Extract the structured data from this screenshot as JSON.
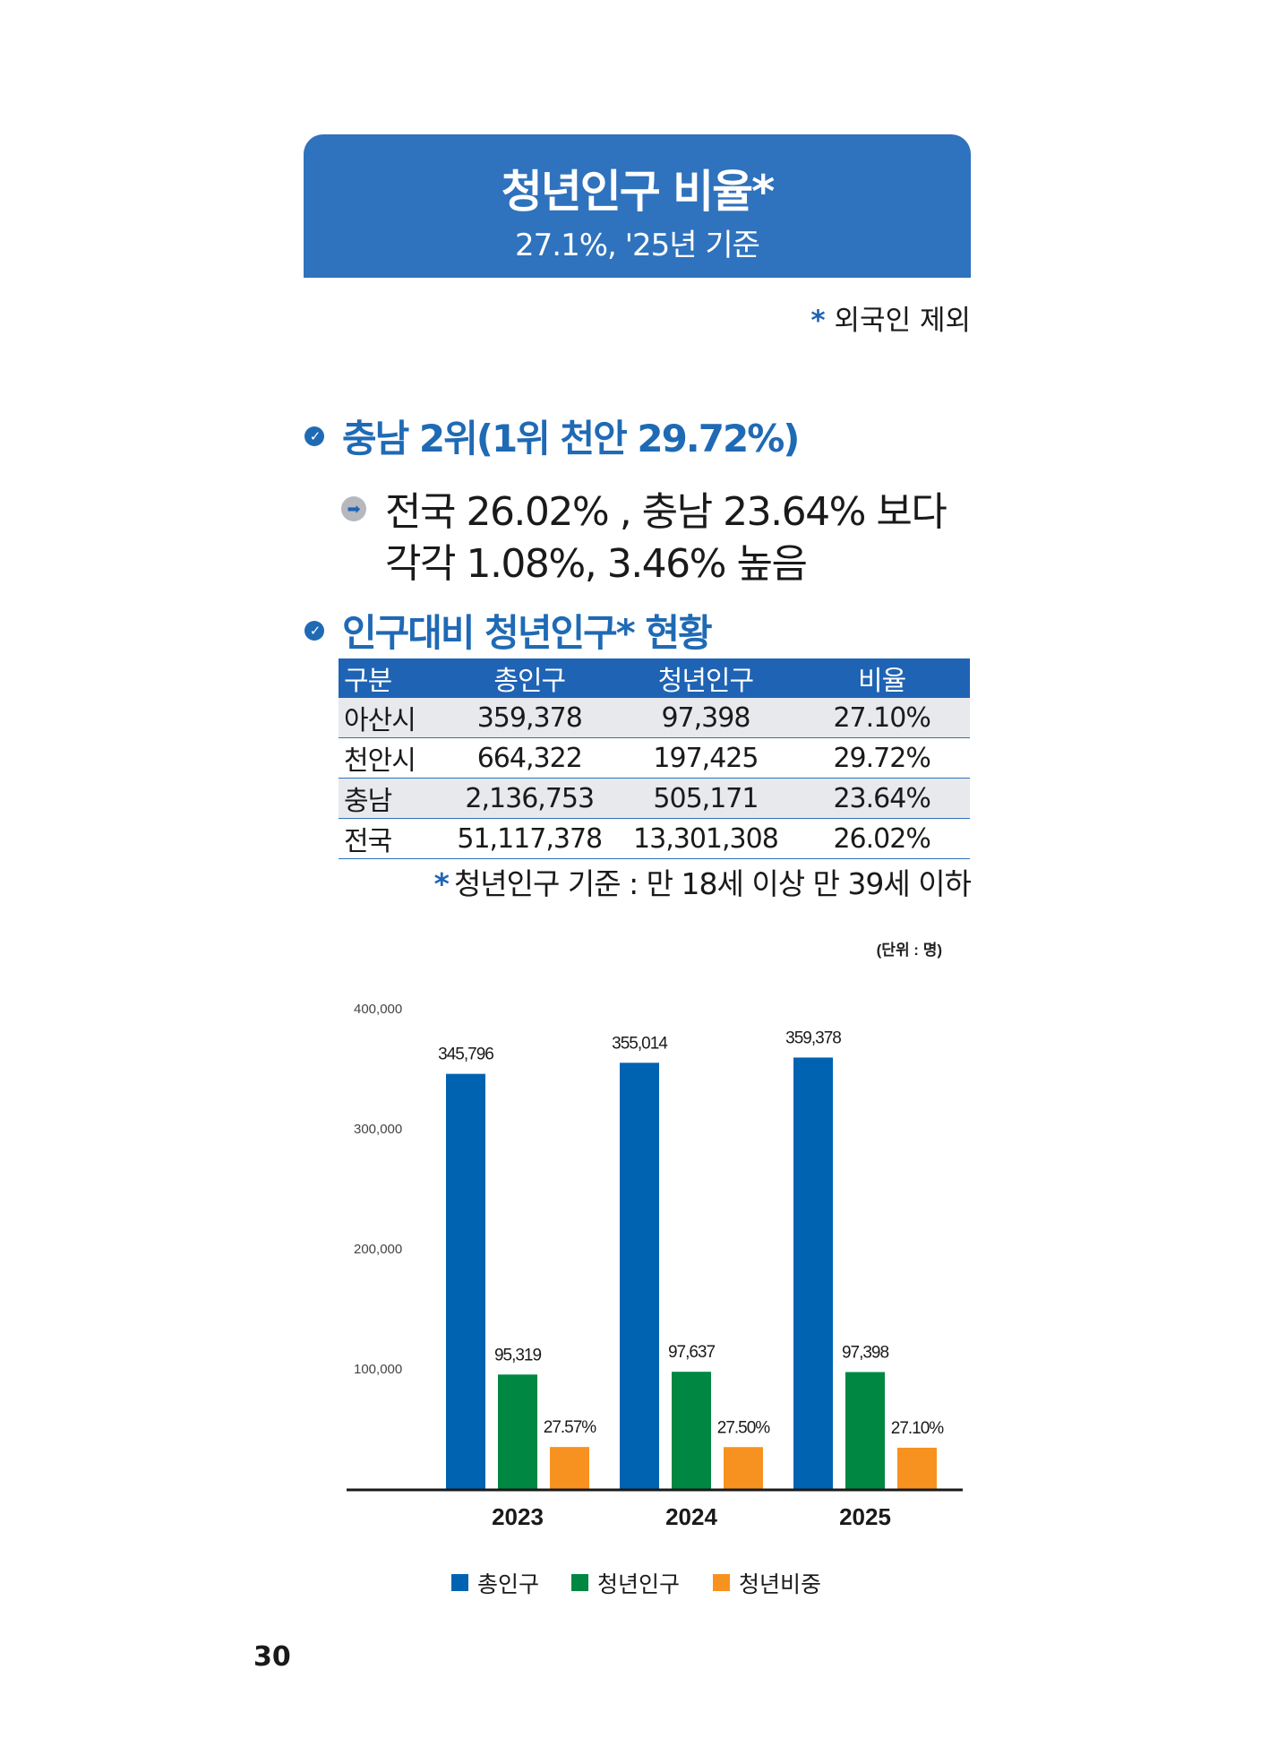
{
  "banner": {
    "title": "청년인구 비율*",
    "subtitle": "27.1%, '25년 기준"
  },
  "foreign_note": {
    "mark": "*",
    "text": "외국인 제외"
  },
  "section1": {
    "heading": "충남 2위(1위 천안 29.72%)",
    "line1": "전국 26.02% , 충남 23.64% 보다",
    "line2": "각각 1.08%, 3.46% 높음"
  },
  "section2": {
    "heading": "인구대비 청년인구* 현황"
  },
  "table": {
    "headers": [
      "구분",
      "총인구",
      "청년인구",
      "비율"
    ],
    "rows": [
      [
        "아산시",
        "359,378",
        "97,398",
        "27.10%"
      ],
      [
        "천안시",
        "664,322",
        "197,425",
        "29.72%"
      ],
      [
        "충남",
        "2,136,753",
        "505,171",
        "23.64%"
      ],
      [
        "전국",
        "51,117,378",
        "13,301,308",
        "26.02%"
      ]
    ],
    "note_mark": "*",
    "note": "청년인구 기준 : 만 18세 이상 만 39세 이하"
  },
  "chart_data": {
    "type": "bar",
    "unit_label": "(단위 : 명)",
    "categories": [
      "2023",
      "2024",
      "2025"
    ],
    "yticks": [
      "100,000",
      "200,000",
      "300,000",
      "400,000"
    ],
    "ylim": [
      0,
      400000
    ],
    "grid": false,
    "legend_position": "bottom",
    "series": [
      {
        "name": "총인구",
        "color": "#0063b2",
        "values": [
          345796,
          355014,
          359378
        ],
        "labels": [
          "345,796",
          "355,014",
          "359,378"
        ]
      },
      {
        "name": "청년인구",
        "color": "#008742",
        "values": [
          95319,
          97637,
          97398
        ],
        "labels": [
          "95,319",
          "97,637",
          "97,398"
        ]
      },
      {
        "name": "청년비중",
        "color": "#f79221",
        "values": [
          27.57,
          27.5,
          27.1
        ],
        "labels": [
          "27.57%",
          "27.50%",
          "27.10%"
        ]
      }
    ]
  },
  "page_number": "30"
}
